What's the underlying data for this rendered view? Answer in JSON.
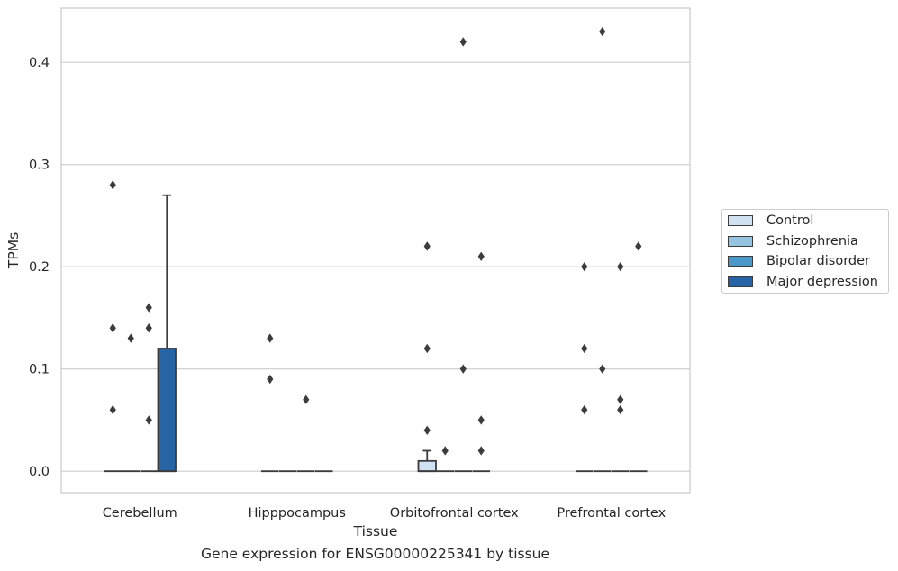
{
  "chart_data": {
    "type": "box",
    "xlabel": "Tissue",
    "ylabel": "TPMs",
    "caption": "Gene expression for ENSG00000225341 by tissue",
    "ylim": [
      -0.021,
      0.453
    ],
    "yticks": [
      0.0,
      0.1,
      0.2,
      0.3,
      0.4
    ],
    "ytick_labels": [
      "0.0",
      "0.1",
      "0.2",
      "0.3",
      "0.4"
    ],
    "grid": "horizontal",
    "legend_position": "right",
    "categories": [
      "Cerebellum",
      "Hipppocampus",
      "Orbitofrontal cortex",
      "Prefrontal cortex"
    ],
    "series": [
      {
        "name": "Control",
        "color": "#d0e1f2",
        "boxes": [
          {
            "q1": 0,
            "median": 0,
            "q3": 0,
            "whisker_low": 0,
            "whisker_high": 0,
            "outliers": [
              0.28,
              0.14,
              0.06
            ]
          },
          {
            "q1": 0,
            "median": 0,
            "q3": 0,
            "whisker_low": 0,
            "whisker_high": 0,
            "outliers": [
              0.13,
              0.09
            ]
          },
          {
            "q1": 0,
            "median": 0,
            "q3": 0.01,
            "whisker_low": 0,
            "whisker_high": 0.02,
            "outliers": [
              0.22,
              0.12,
              0.04
            ]
          },
          {
            "q1": 0,
            "median": 0,
            "q3": 0,
            "whisker_low": 0,
            "whisker_high": 0,
            "outliers": [
              0.2,
              0.12,
              0.06
            ]
          }
        ]
      },
      {
        "name": "Schizophrenia",
        "color": "#94c4df",
        "boxes": [
          {
            "q1": 0,
            "median": 0,
            "q3": 0,
            "whisker_low": 0,
            "whisker_high": 0,
            "outliers": [
              0.13
            ]
          },
          {
            "q1": 0,
            "median": 0,
            "q3": 0,
            "whisker_low": 0,
            "whisker_high": 0,
            "outliers": []
          },
          {
            "q1": 0,
            "median": 0,
            "q3": 0,
            "whisker_low": 0,
            "whisker_high": 0,
            "outliers": [
              0.02
            ]
          },
          {
            "q1": 0,
            "median": 0,
            "q3": 0,
            "whisker_low": 0,
            "whisker_high": 0,
            "outliers": [
              0.43,
              0.1
            ]
          }
        ]
      },
      {
        "name": "Bipolar disorder",
        "color": "#4a98c9",
        "boxes": [
          {
            "q1": 0,
            "median": 0,
            "q3": 0,
            "whisker_low": 0,
            "whisker_high": 0,
            "outliers": [
              0.16,
              0.14,
              0.05
            ]
          },
          {
            "q1": 0,
            "median": 0,
            "q3": 0,
            "whisker_low": 0,
            "whisker_high": 0,
            "outliers": [
              0.07
            ]
          },
          {
            "q1": 0,
            "median": 0,
            "q3": 0,
            "whisker_low": 0,
            "whisker_high": 0,
            "outliers": [
              0.42,
              0.1
            ]
          },
          {
            "q1": 0,
            "median": 0,
            "q3": 0,
            "whisker_low": 0,
            "whisker_high": 0,
            "outliers": [
              0.2,
              0.07,
              0.06
            ]
          }
        ]
      },
      {
        "name": "Major depression",
        "color": "#2664a5",
        "boxes": [
          {
            "q1": 0,
            "median": 0,
            "q3": 0.12,
            "whisker_low": 0,
            "whisker_high": 0.27,
            "outliers": []
          },
          {
            "q1": 0,
            "median": 0,
            "q3": 0,
            "whisker_low": 0,
            "whisker_high": 0,
            "outliers": []
          },
          {
            "q1": 0,
            "median": 0,
            "q3": 0,
            "whisker_low": 0,
            "whisker_high": 0,
            "outliers": [
              0.21,
              0.05,
              0.02
            ]
          },
          {
            "q1": 0,
            "median": 0,
            "q3": 0,
            "whisker_low": 0,
            "whisker_high": 0,
            "outliers": [
              0.22
            ]
          }
        ]
      }
    ]
  }
}
